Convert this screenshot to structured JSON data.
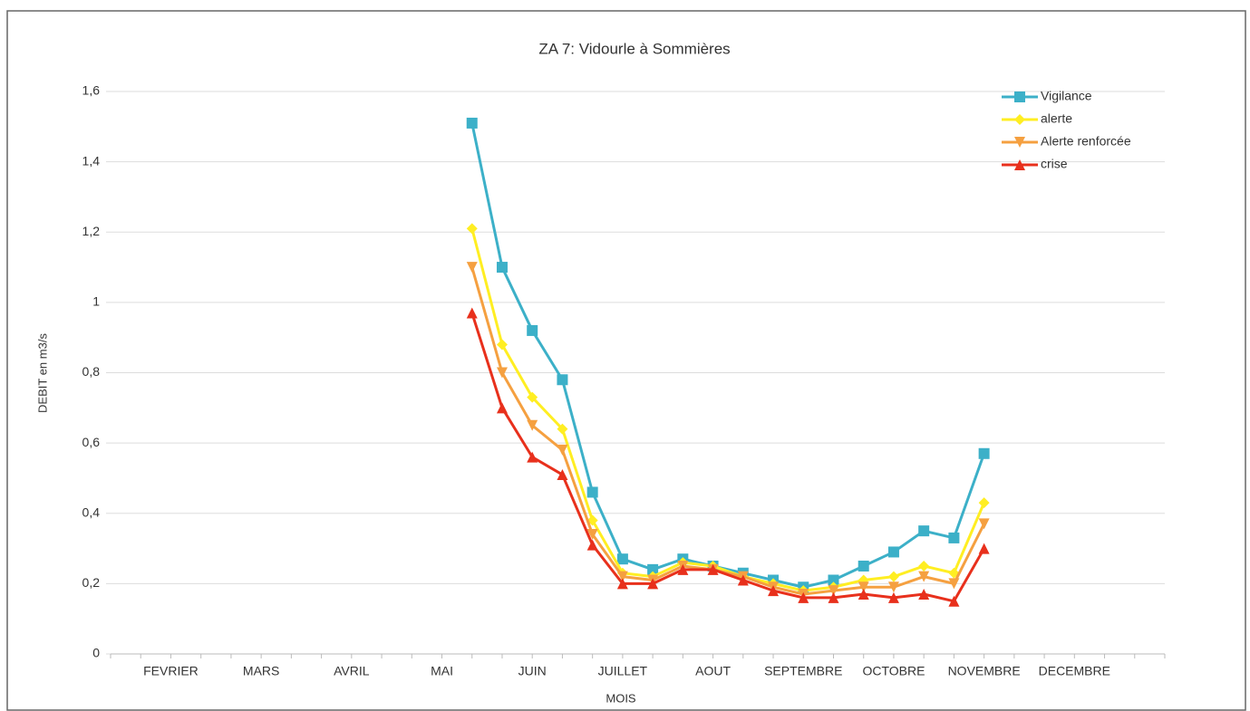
{
  "chart_data": {
    "type": "line",
    "title": "ZA 7: Vidourle à Sommières",
    "x_label": "MOIS",
    "y_label": "DEBIT en m3/s",
    "categories": [
      null,
      null,
      "FEVRIER",
      null,
      null,
      "MARS",
      null,
      null,
      "AVRIL",
      null,
      null,
      "MAI",
      null,
      null,
      "JUIN",
      null,
      null,
      "JUILLET",
      null,
      null,
      "AOUT",
      null,
      null,
      "SEPTEMBRE",
      null,
      null,
      "OCTOBRE",
      null,
      null,
      "NOVEMBRE",
      null,
      null,
      "DECEMBRE",
      null,
      null
    ],
    "series": [
      {
        "name": "Vigilance",
        "color": "#3cb0c8",
        "marker": "square",
        "values": [
          null,
          null,
          null,
          null,
          null,
          null,
          null,
          null,
          null,
          null,
          null,
          null,
          1.51,
          1.1,
          0.92,
          0.78,
          0.46,
          0.27,
          0.24,
          0.27,
          0.25,
          0.23,
          0.21,
          0.19,
          0.21,
          0.25,
          0.29,
          0.35,
          0.33,
          0.57,
          null,
          null,
          null,
          null,
          null
        ]
      },
      {
        "name": "alerte",
        "color": "#ffee22",
        "marker": "diamond",
        "values": [
          null,
          null,
          null,
          null,
          null,
          null,
          null,
          null,
          null,
          null,
          null,
          null,
          1.21,
          0.88,
          0.73,
          0.64,
          0.38,
          0.23,
          0.22,
          0.26,
          0.25,
          0.22,
          0.2,
          0.18,
          0.19,
          0.21,
          0.22,
          0.25,
          0.23,
          0.43,
          null,
          null,
          null,
          null,
          null
        ]
      },
      {
        "name": "Alerte renforcée",
        "color": "#f5a040",
        "marker": "down",
        "values": [
          null,
          null,
          null,
          null,
          null,
          null,
          null,
          null,
          null,
          null,
          null,
          null,
          1.1,
          0.8,
          0.65,
          0.58,
          0.34,
          0.22,
          0.21,
          0.25,
          0.24,
          0.22,
          0.19,
          0.17,
          0.18,
          0.19,
          0.19,
          0.22,
          0.2,
          0.37,
          null,
          null,
          null,
          null,
          null
        ]
      },
      {
        "name": "crise",
        "color": "#e8301c",
        "marker": "up",
        "values": [
          null,
          null,
          null,
          null,
          null,
          null,
          null,
          null,
          null,
          null,
          null,
          null,
          0.97,
          0.7,
          0.56,
          0.51,
          0.31,
          0.2,
          0.2,
          0.24,
          0.24,
          0.21,
          0.18,
          0.16,
          0.16,
          0.17,
          0.16,
          0.17,
          0.15,
          0.3,
          null,
          null,
          null,
          null,
          null
        ]
      }
    ],
    "ylim": [
      0,
      1.6
    ],
    "yticks": [
      0,
      {
        "value": 0.2,
        "label": "0,2"
      },
      {
        "value": 0.4,
        "label": "0,4"
      },
      {
        "value": 0.6,
        "label": "0,6"
      },
      {
        "value": 0.8,
        "label": "0,8"
      },
      1,
      {
        "value": 1.2,
        "label": "1,2"
      },
      {
        "value": 1.4,
        "label": "1,4"
      },
      {
        "value": 1.6,
        "label": "1,6"
      }
    ],
    "grid": true,
    "legend": "top-right"
  }
}
